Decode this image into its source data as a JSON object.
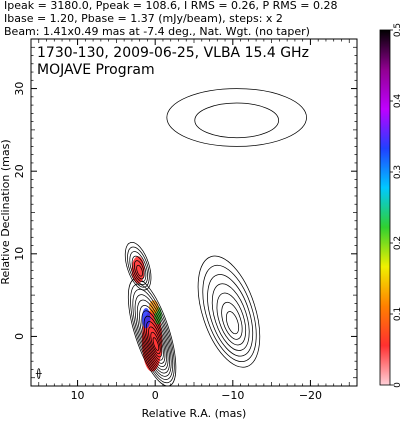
{
  "header": {
    "line1": "Ipeak = 3180.0, Ppeak = 108.6, I RMS = 0.26, P RMS = 0.28",
    "line2": "Ibase = 1.20, Pbase = 1.37 (mJy/beam), steps: x 2",
    "line3": "Beam: 1.41x0.49 mas at -7.4 deg., Nat. Wgt. (no taper)"
  },
  "plot": {
    "title_line1": "1730-130, 2009-06-25, VLBA 15.4 GHz",
    "title_line2": "MOJAVE Program"
  },
  "chart_data": {
    "type": "contour map with fractional polarization color overlay",
    "xlabel": "Relative R.A. (mas)",
    "ylabel": "Relative Declination (mas)",
    "xlim": [
      16,
      -26
    ],
    "ylim": [
      -6,
      36
    ],
    "x_ticks": [
      10,
      0,
      -10,
      -20
    ],
    "y_ticks": [
      0,
      10,
      20,
      30
    ],
    "x_tick_labels": [
      "10",
      "0",
      "−10",
      "−20"
    ],
    "y_tick_labels": [
      "0",
      "10",
      "20",
      "30"
    ],
    "colorbar": {
      "range": [
        0,
        0.5
      ],
      "ticks": [
        0,
        0.1,
        0.2,
        0.3,
        0.4,
        0.5
      ],
      "tick_labels": [
        "0",
        "0.1",
        "0.2",
        "0.3",
        "0.4",
        "0.5"
      ],
      "colors": [
        "#ffd0d8",
        "#ff3030",
        "#ff8000",
        "#f0f000",
        "#30d030",
        "#00c8ff",
        "#2040ff",
        "#c000ff",
        "#900090",
        "#000000"
      ]
    },
    "components": [
      {
        "name": "core",
        "x": 0.4,
        "y": 0.5,
        "levels": 12,
        "width": 2.2,
        "height": 6.8,
        "polarization_color": "#ff2020"
      },
      {
        "name": "inner-jet knot",
        "x": 2.2,
        "y": 8.5,
        "levels": 6,
        "width": 1.4,
        "height": 3.0,
        "polarization_color": "#ff3030"
      },
      {
        "name": "western lobe",
        "x": -9.5,
        "y": 3.0,
        "levels": 7,
        "width": 3.4,
        "height": 7.0,
        "polarization_color": ""
      },
      {
        "name": "northern extended emission",
        "x": -10.5,
        "y": 26.5,
        "levels": 2,
        "width": 9.0,
        "height": 3.5,
        "polarization_color": ""
      }
    ]
  }
}
